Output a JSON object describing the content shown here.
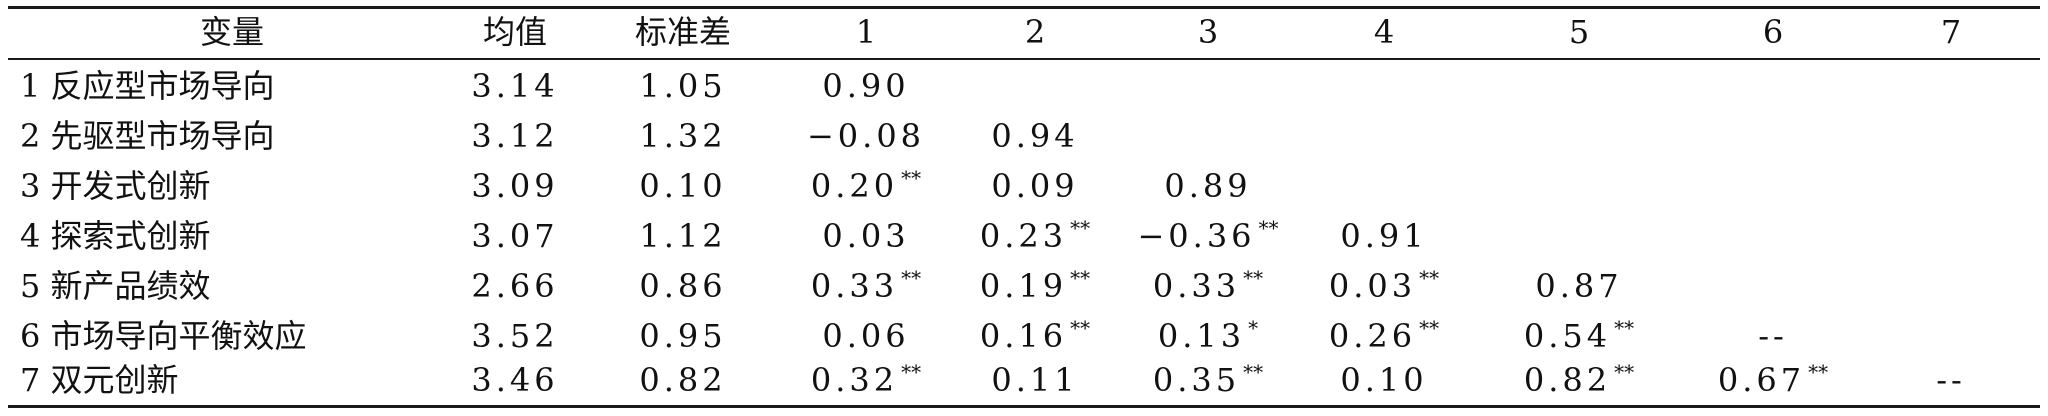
{
  "table": {
    "headers": [
      "变量",
      "均值",
      "标准差",
      "1",
      "2",
      "3",
      "4",
      "5",
      "6",
      "7"
    ],
    "rows": [
      {
        "var": "1 反应型市场导向",
        "mean": "3.14",
        "sd": "1.05",
        "c": [
          {
            "v": "0.90",
            "s": ""
          }
        ]
      },
      {
        "var": "2 先驱型市场导向",
        "mean": "3.12",
        "sd": "1.32",
        "c": [
          {
            "v": "−0.08",
            "s": ""
          },
          {
            "v": "0.94",
            "s": ""
          }
        ]
      },
      {
        "var": "3 开发式创新",
        "mean": "3.09",
        "sd": "0.10",
        "c": [
          {
            "v": "0.20",
            "s": "**"
          },
          {
            "v": "0.09",
            "s": ""
          },
          {
            "v": "0.89",
            "s": ""
          }
        ]
      },
      {
        "var": "4 探索式创新",
        "mean": "3.07",
        "sd": "1.12",
        "c": [
          {
            "v": "0.03",
            "s": ""
          },
          {
            "v": "0.23",
            "s": "**"
          },
          {
            "v": "−0.36",
            "s": "**"
          },
          {
            "v": "0.91",
            "s": ""
          }
        ]
      },
      {
        "var": "5 新产品绩效",
        "mean": "2.66",
        "sd": "0.86",
        "c": [
          {
            "v": "0.33",
            "s": "**"
          },
          {
            "v": "0.19",
            "s": "**"
          },
          {
            "v": "0.33",
            "s": "**"
          },
          {
            "v": "0.03",
            "s": "**"
          },
          {
            "v": "0.87",
            "s": ""
          }
        ]
      },
      {
        "var": "6 市场导向平衡效应",
        "mean": "3.52",
        "sd": "0.95",
        "c": [
          {
            "v": "0.06",
            "s": ""
          },
          {
            "v": "0.16",
            "s": "**"
          },
          {
            "v": "0.13",
            "s": "*"
          },
          {
            "v": "0.26",
            "s": "**"
          },
          {
            "v": "0.54",
            "s": "**"
          },
          {
            "v": "--",
            "s": ""
          }
        ]
      },
      {
        "var": "7 双元创新",
        "mean": "3.46",
        "sd": "0.82",
        "c": [
          {
            "v": "0.32",
            "s": "**"
          },
          {
            "v": "0.11",
            "s": ""
          },
          {
            "v": "0.35",
            "s": "**"
          },
          {
            "v": "0.10",
            "s": ""
          },
          {
            "v": "0.82",
            "s": "**"
          },
          {
            "v": "0.67",
            "s": "**"
          },
          {
            "v": "--",
            "s": ""
          }
        ]
      }
    ]
  }
}
